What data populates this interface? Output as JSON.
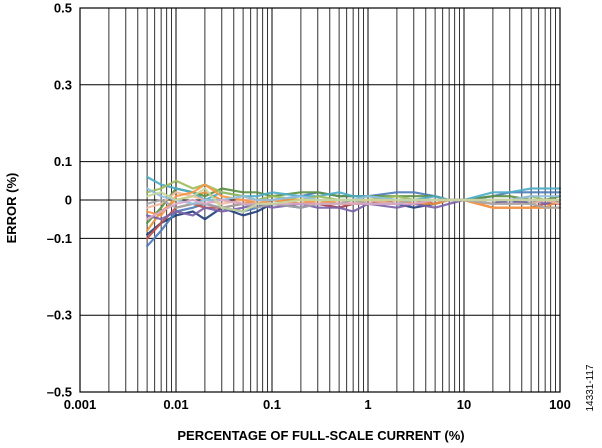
{
  "chart_data": {
    "type": "line",
    "xscale": "log",
    "xlim": [
      0.001,
      100
    ],
    "ylim": [
      -0.5,
      0.5
    ],
    "xlabel": "PERCENTAGE OF FULL-SCALE CURRENT (%)",
    "ylabel": "ERROR (%)",
    "x_ticks": [
      {
        "value": 0.001,
        "label": "0.001"
      },
      {
        "value": 0.01,
        "label": "0.01"
      },
      {
        "value": 0.1,
        "label": "0.1"
      },
      {
        "value": 1,
        "label": "1"
      },
      {
        "value": 10,
        "label": "10"
      },
      {
        "value": 100,
        "label": "100"
      }
    ],
    "y_ticks": [
      {
        "value": 0.5,
        "label": "0.5"
      },
      {
        "value": 0.3,
        "label": "0.3"
      },
      {
        "value": 0.1,
        "label": "0.1"
      },
      {
        "value": 0,
        "label": "0"
      },
      {
        "value": -0.1,
        "label": "–0.1"
      },
      {
        "value": -0.3,
        "label": "–0.3"
      },
      {
        "value": -0.5,
        "label": "–0.5"
      }
    ],
    "y_gridlines": [
      0.5,
      0.3,
      0.1,
      0,
      -0.1,
      -0.3,
      -0.5
    ],
    "grid": true,
    "figure_id": "14331-117",
    "x": [
      0.005,
      0.007,
      0.01,
      0.015,
      0.02,
      0.03,
      0.05,
      0.07,
      0.1,
      0.2,
      0.3,
      0.5,
      0.7,
      1,
      2,
      3,
      5,
      7,
      10,
      20,
      30,
      50,
      70,
      100
    ],
    "series": [
      {
        "color": "#1f3d7a",
        "values": [
          -0.09,
          -0.06,
          -0.04,
          -0.03,
          -0.05,
          -0.02,
          -0.04,
          -0.03,
          -0.01,
          -0.02,
          -0.01,
          -0.02,
          -0.01,
          0.0,
          -0.01,
          -0.02,
          -0.01,
          0.0,
          0.0,
          -0.01,
          0.0,
          -0.01,
          0.0,
          -0.01
        ]
      },
      {
        "color": "#4a7ab8",
        "values": [
          -0.12,
          -0.08,
          -0.03,
          -0.02,
          -0.01,
          -0.02,
          -0.03,
          -0.02,
          0.0,
          0.01,
          0.02,
          0.01,
          0.01,
          0.01,
          0.02,
          0.02,
          0.01,
          0.0,
          0.0,
          0.01,
          0.02,
          0.02,
          0.02,
          0.02
        ]
      },
      {
        "color": "#c0504d",
        "values": [
          -0.1,
          -0.06,
          -0.02,
          -0.01,
          -0.02,
          -0.02,
          -0.01,
          -0.01,
          0.0,
          -0.01,
          -0.01,
          -0.02,
          -0.01,
          -0.01,
          0.0,
          0.0,
          -0.01,
          0.0,
          0.0,
          -0.02,
          -0.02,
          -0.02,
          -0.01,
          -0.01
        ]
      },
      {
        "color": "#e8923a",
        "values": [
          -0.08,
          -0.03,
          0.0,
          0.01,
          0.02,
          0.0,
          -0.01,
          0.0,
          0.0,
          -0.01,
          0.0,
          -0.01,
          -0.01,
          0.0,
          0.0,
          -0.01,
          -0.01,
          0.0,
          0.0,
          -0.02,
          -0.02,
          -0.02,
          -0.02,
          0.0
        ]
      },
      {
        "color": "#5a8f3e",
        "values": [
          -0.06,
          -0.02,
          0.03,
          0.02,
          0.01,
          0.03,
          0.02,
          0.02,
          0.01,
          0.02,
          0.02,
          0.01,
          0.01,
          0.01,
          0.01,
          0.01,
          0.01,
          0.0,
          0.0,
          0.01,
          0.01,
          0.0,
          0.0,
          0.01
        ]
      },
      {
        "color": "#7a5fa8",
        "values": [
          -0.04,
          -0.05,
          -0.03,
          -0.04,
          -0.02,
          -0.03,
          -0.02,
          -0.01,
          -0.02,
          -0.01,
          -0.02,
          -0.02,
          -0.03,
          -0.01,
          -0.02,
          -0.01,
          -0.02,
          -0.01,
          0.0,
          0.0,
          -0.01,
          0.0,
          -0.01,
          0.0
        ]
      },
      {
        "color": "#4bacc6",
        "values": [
          0.06,
          0.04,
          0.03,
          0.02,
          0.0,
          0.02,
          0.01,
          0.01,
          0.02,
          0.01,
          0.01,
          0.02,
          0.01,
          0.01,
          0.0,
          0.0,
          0.01,
          0.0,
          0.0,
          0.02,
          0.02,
          0.03,
          0.03,
          0.03
        ]
      },
      {
        "color": "#9bbb59",
        "values": [
          0.02,
          0.03,
          0.05,
          0.03,
          0.04,
          0.02,
          0.01,
          0.0,
          0.01,
          0.0,
          0.01,
          0.0,
          0.0,
          0.0,
          0.01,
          0.0,
          0.0,
          0.0,
          0.0,
          0.0,
          0.0,
          0.01,
          0.0,
          0.0
        ]
      },
      {
        "color": "#f2b8a0",
        "values": [
          -0.02,
          -0.01,
          0.02,
          0.01,
          0.0,
          -0.01,
          0.0,
          0.0,
          -0.01,
          0.0,
          0.0,
          0.0,
          -0.01,
          0.0,
          -0.01,
          0.0,
          0.0,
          0.0,
          0.0,
          -0.01,
          -0.01,
          -0.01,
          0.0,
          -0.01
        ]
      },
      {
        "color": "#f79646",
        "values": [
          -0.03,
          -0.04,
          0.01,
          0.02,
          0.04,
          0.01,
          0.0,
          -0.01,
          0.0,
          0.0,
          -0.01,
          0.0,
          0.0,
          0.0,
          0.0,
          -0.01,
          0.0,
          0.0,
          0.0,
          -0.02,
          -0.02,
          -0.02,
          -0.02,
          -0.02
        ]
      },
      {
        "color": "#a6a6a6",
        "values": [
          -0.01,
          0.0,
          -0.02,
          -0.01,
          -0.01,
          -0.02,
          -0.01,
          -0.02,
          -0.01,
          -0.02,
          -0.01,
          -0.01,
          0.0,
          -0.01,
          -0.01,
          0.0,
          0.0,
          0.0,
          0.0,
          -0.01,
          -0.01,
          -0.01,
          -0.02,
          -0.02
        ]
      },
      {
        "color": "#8fbfe0",
        "values": [
          0.03,
          0.01,
          0.0,
          -0.01,
          0.0,
          0.0,
          0.01,
          0.0,
          0.0,
          0.01,
          0.0,
          0.0,
          0.0,
          0.01,
          0.0,
          0.0,
          0.0,
          0.0,
          0.0,
          0.0,
          0.0,
          0.01,
          0.01,
          0.01
        ]
      },
      {
        "color": "#d8a8c8",
        "values": [
          -0.05,
          -0.03,
          -0.01,
          0.0,
          -0.01,
          0.0,
          -0.01,
          -0.01,
          -0.01,
          -0.01,
          -0.01,
          -0.01,
          -0.01,
          -0.01,
          -0.01,
          -0.01,
          0.0,
          0.0,
          0.0,
          0.0,
          0.0,
          0.0,
          0.0,
          0.0
        ]
      },
      {
        "color": "#c4d79b",
        "values": [
          0.01,
          0.02,
          0.0,
          0.01,
          0.03,
          -0.02,
          -0.03,
          -0.01,
          -0.01,
          0.0,
          0.0,
          0.0,
          0.0,
          0.0,
          0.0,
          0.0,
          0.0,
          0.0,
          0.0,
          0.0,
          0.0,
          0.0,
          0.0,
          0.0
        ]
      }
    ]
  }
}
